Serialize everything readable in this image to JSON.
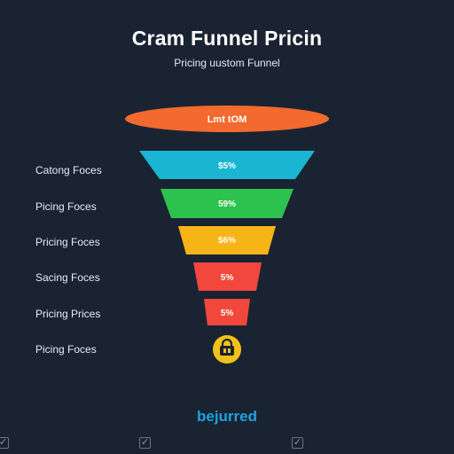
{
  "header": {
    "title": "Cram Funnel Pricin",
    "subtitle": "Pricing uustom Funnel"
  },
  "funnel": {
    "stages": [
      {
        "value_label": "Lmt tOM",
        "side_label": "",
        "color": "#f26a2e",
        "shape": "ellipse"
      },
      {
        "value_label": "$5%",
        "side_label": "Catong Foces",
        "color": "#19b5d2",
        "shape": "trapezoid"
      },
      {
        "value_label": "59%",
        "side_label": "Picing Foces",
        "color": "#2dc24e",
        "shape": "trapezoid"
      },
      {
        "value_label": "$6%",
        "side_label": "Pricing Foces",
        "color": "#f7b416",
        "shape": "trapezoid"
      },
      {
        "value_label": "5%",
        "side_label": "Sacing Foces",
        "color": "#f2473c",
        "shape": "trapezoid"
      },
      {
        "value_label": "5%",
        "side_label": "Pricing Prices",
        "color": "#f2473c",
        "shape": "trapezoid"
      },
      {
        "value_label": "",
        "side_label": "Picing Foces",
        "color": "#f2c21a",
        "shape": "lock-circle",
        "icon": "lock-icon"
      }
    ]
  },
  "footer": {
    "brand": "bejurred",
    "checkbox_icon": "checkbox-check-icon"
  }
}
